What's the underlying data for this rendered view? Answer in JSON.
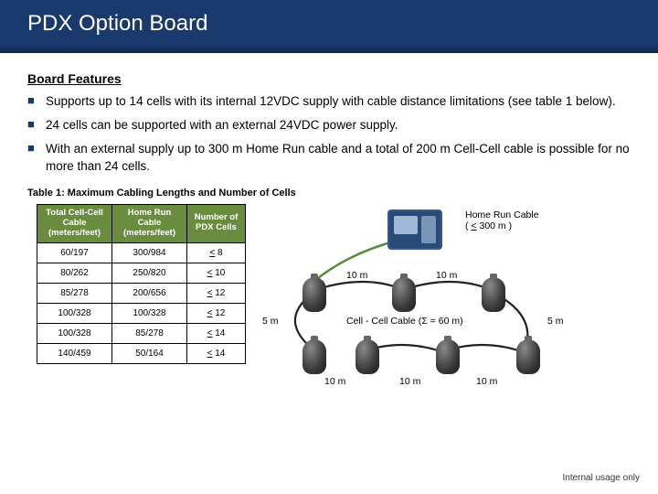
{
  "title": "PDX Option Board",
  "sectionHeading": "Board Features",
  "bullets": [
    "Supports up to 14 cells with its internal 12VDC supply with cable distance limitations (see table 1 below).",
    "24 cells can be supported with an external 24VDC power supply.",
    "With an external supply up to 300 m Home Run cable and a total of 200 m Cell-Cell cable is possible for no more than 24 cells."
  ],
  "tableCaption": "Table 1: Maximum Cabling Lengths and Number of Cells",
  "table": {
    "headers": [
      "Total Cell-Cell Cable (meters/feet)",
      "Home Run Cable (meters/feet)",
      "Number of PDX Cells"
    ],
    "rows": [
      [
        "60/197",
        "300/984",
        "8"
      ],
      [
        "80/262",
        "250/820",
        "10"
      ],
      [
        "85/278",
        "200/656",
        "12"
      ],
      [
        "100/328",
        "100/328",
        "12"
      ],
      [
        "100/328",
        "85/278",
        "14"
      ],
      [
        "140/459",
        "50/164",
        "14"
      ]
    ]
  },
  "diagram": {
    "homeRunLabelA": "Home Run Cable",
    "homeRunLabelB": "( < 300 m )",
    "sideLabel": "5 m",
    "topLabel": "10 m",
    "cellCellLabel": "Cell - Cell Cable (Σ = 60 m)"
  },
  "footer": "Internal usage only",
  "colors": {
    "titleBg": "#1a3a6e",
    "tableHeader": "#6a8c3f",
    "cableGreen": "#5a8a3a"
  }
}
